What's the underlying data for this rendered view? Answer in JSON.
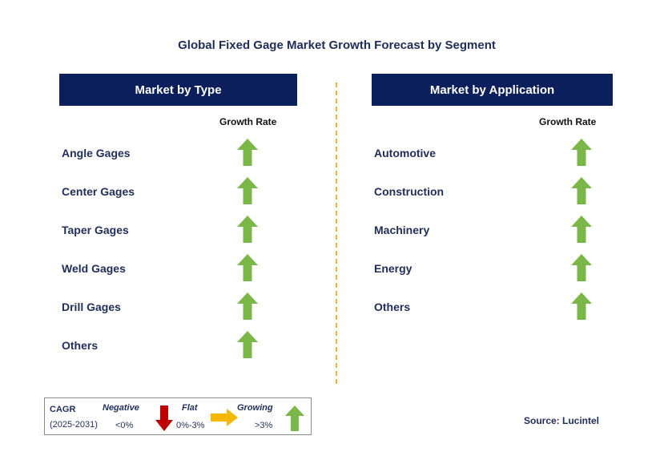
{
  "title": "Global Fixed Gage Market Growth Forecast by Segment",
  "colors": {
    "header_bg": "#0b1f5c",
    "up_arrow": "#7ab648",
    "down_arrow": "#c00000",
    "flat_arrow": "#f5b800",
    "divider": "#f2b233"
  },
  "left_panel": {
    "header": "Market by Type",
    "growth_label": "Growth Rate",
    "items": [
      {
        "label": "Angle Gages",
        "trend": "growing"
      },
      {
        "label": "Center Gages",
        "trend": "growing"
      },
      {
        "label": "Taper Gages",
        "trend": "growing"
      },
      {
        "label": "Weld Gages",
        "trend": "growing"
      },
      {
        "label": "Drill Gages",
        "trend": "growing"
      },
      {
        "label": "Others",
        "trend": "growing"
      }
    ]
  },
  "right_panel": {
    "header": "Market by Application",
    "growth_label": "Growth Rate",
    "items": [
      {
        "label": "Automotive",
        "trend": "growing"
      },
      {
        "label": "Construction",
        "trend": "growing"
      },
      {
        "label": "Machinery",
        "trend": "growing"
      },
      {
        "label": "Energy",
        "trend": "growing"
      },
      {
        "label": "Others",
        "trend": "growing"
      }
    ]
  },
  "legend": {
    "cagr": "CAGR",
    "period": "(2025-2031)",
    "negative": {
      "name": "Negative",
      "range": "<0%",
      "icon": "down-arrow-icon"
    },
    "flat": {
      "name": "Flat",
      "range": "0%-3%",
      "icon": "right-arrow-icon"
    },
    "growing": {
      "name": "Growing",
      "range": ">3%",
      "icon": "up-arrow-icon"
    }
  },
  "source": "Source: Lucintel"
}
